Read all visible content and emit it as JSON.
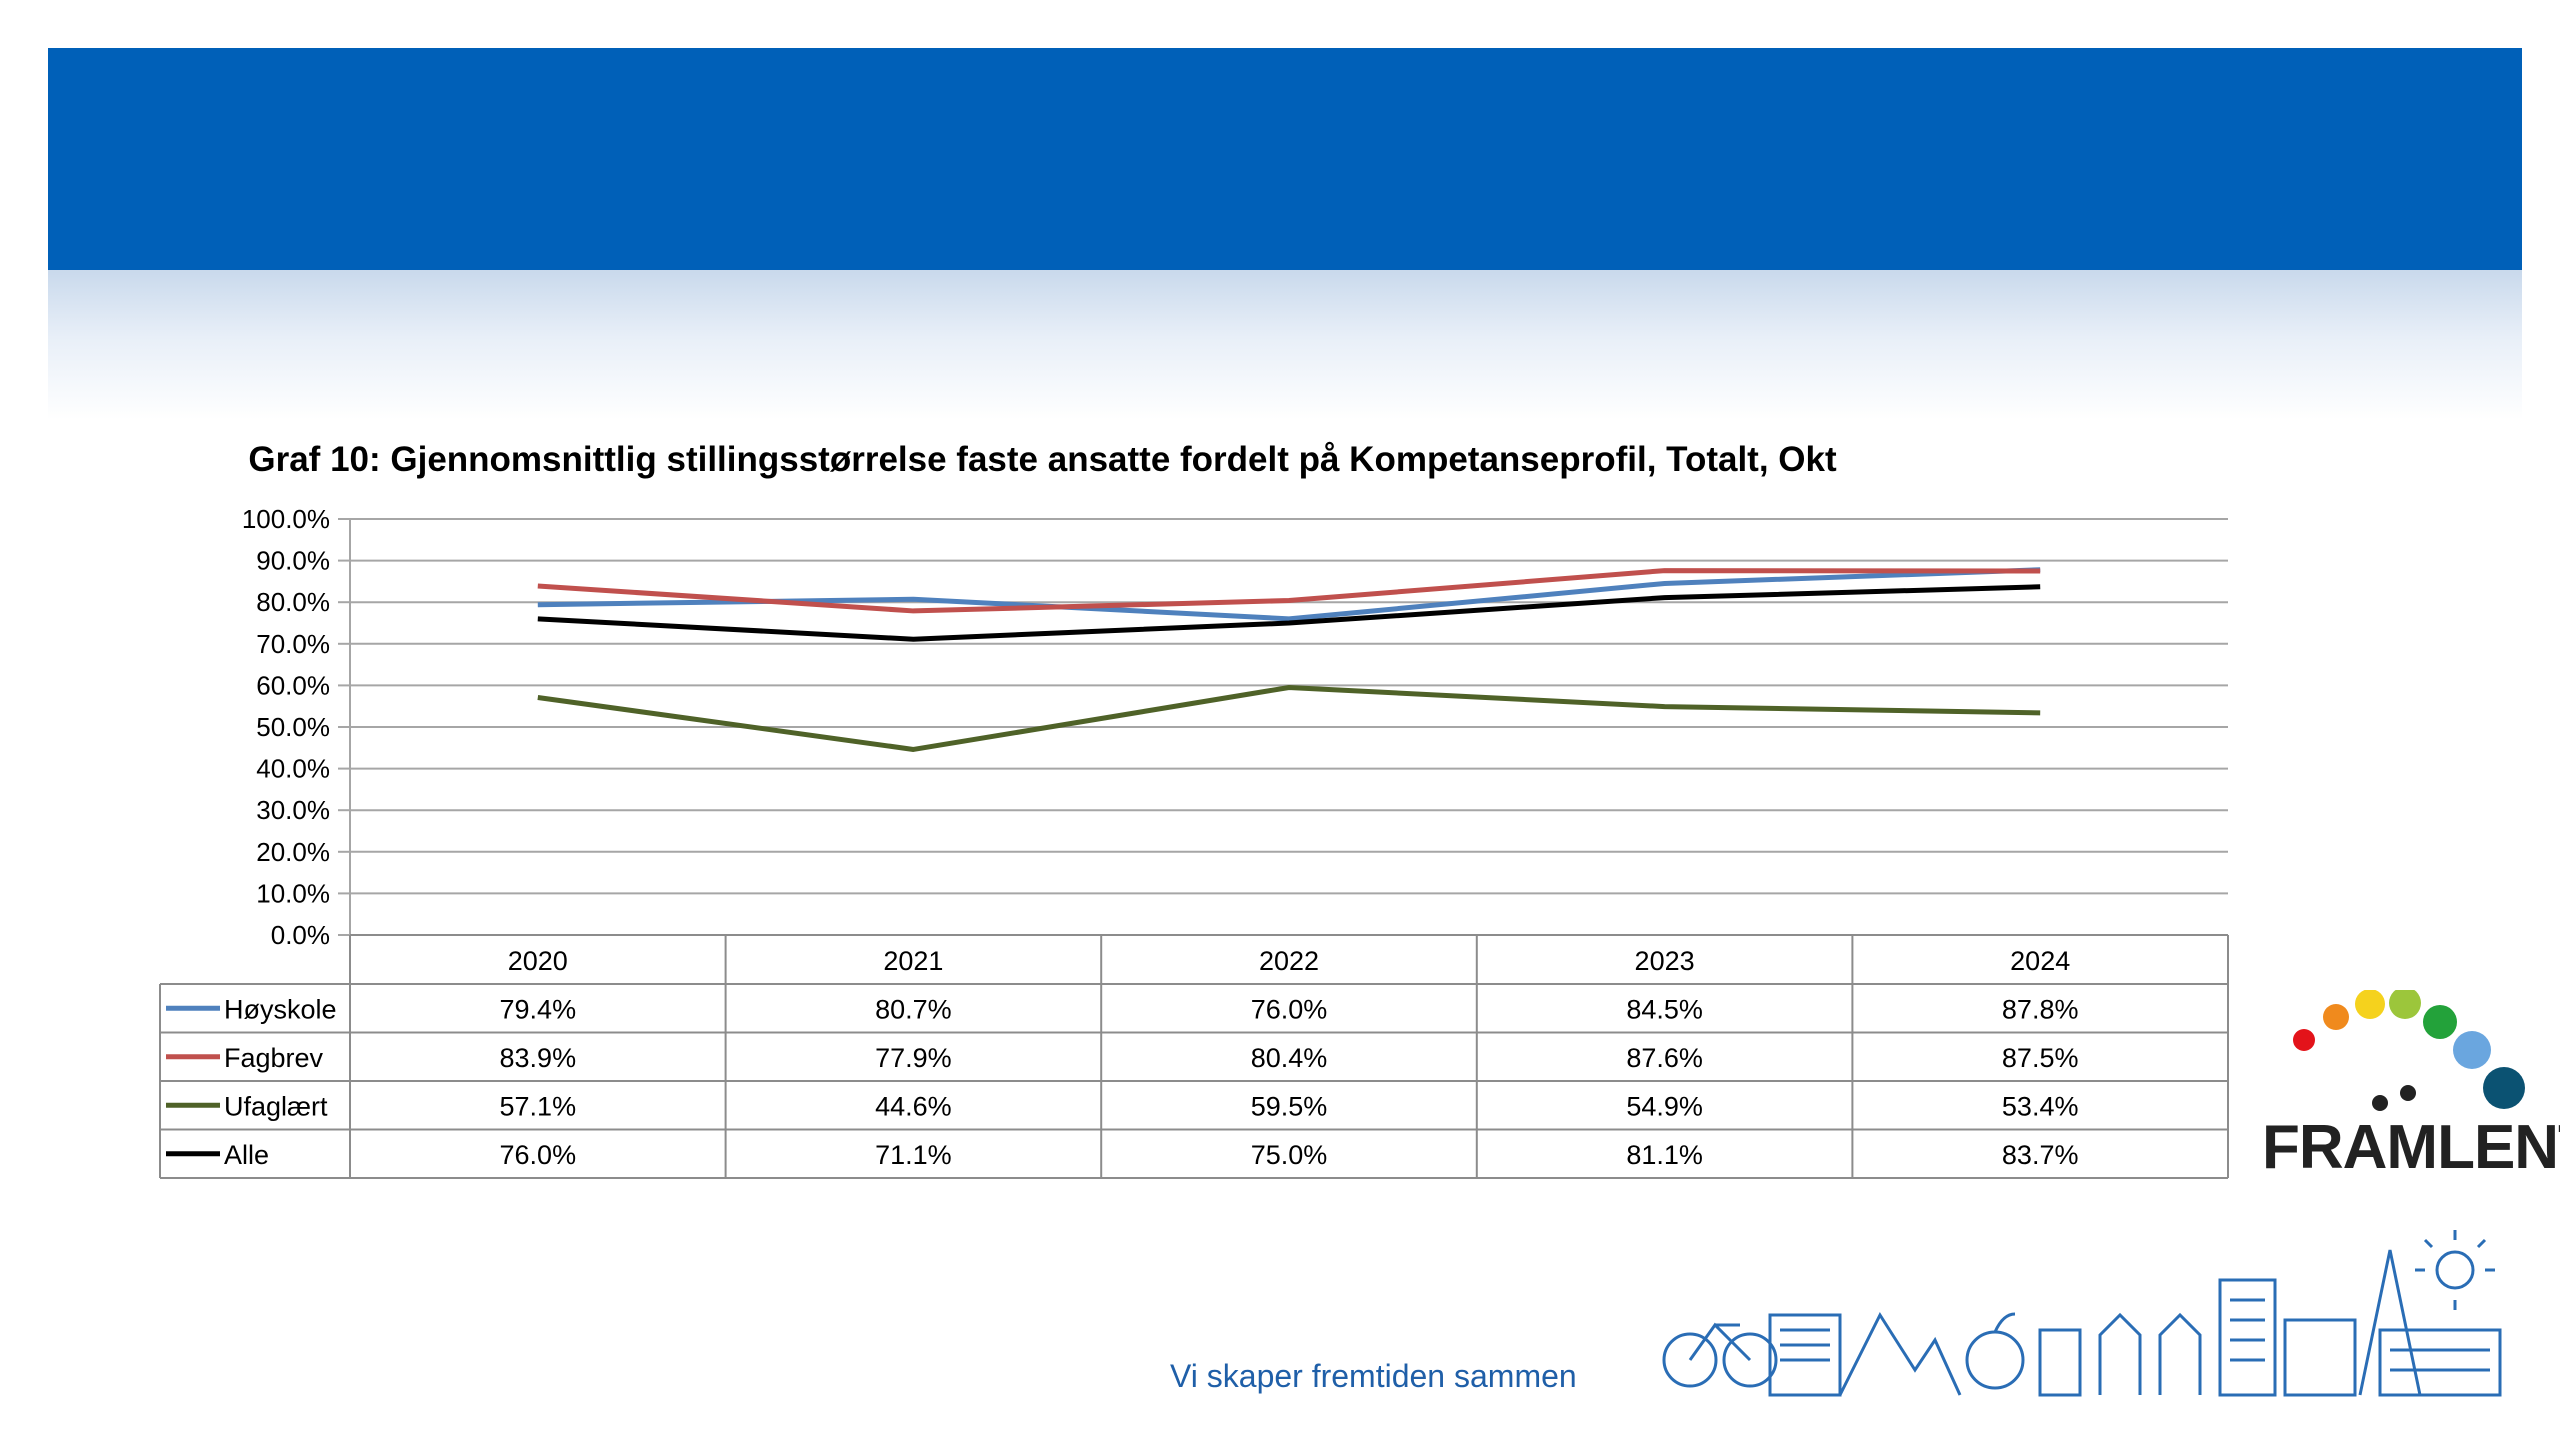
{
  "slide": {
    "slogan": "Vi skaper fremtiden sammen",
    "logo_text": "FRAMLENT",
    "banner_color": "#0060b8",
    "logo_dot_colors": [
      "#e3131a",
      "#f08a1d",
      "#f5d21d",
      "#9cc63b",
      "#23a23a",
      "#6aa6df",
      "#0b5272"
    ]
  },
  "chart_data": {
    "type": "line",
    "title": "Graf 10: Gjennomsnittlig stillingsstørrelse faste ansatte fordelt på Kompetanseprofil, Totalt, Okt",
    "categories": [
      "2020",
      "2021",
      "2022",
      "2023",
      "2024"
    ],
    "ylim": [
      0,
      100
    ],
    "yticks": [
      "100.0%",
      "90.0%",
      "80.0%",
      "70.0%",
      "60.0%",
      "50.0%",
      "40.0%",
      "30.0%",
      "20.0%",
      "10.0%",
      "0.0%"
    ],
    "grid": true,
    "legend": "data-table",
    "series": [
      {
        "name": "Høyskole",
        "color": "#4f81bd",
        "values": [
          79.4,
          80.7,
          76.0,
          84.5,
          87.8
        ],
        "labels": [
          "79.4%",
          "80.7%",
          "76.0%",
          "84.5%",
          "87.8%"
        ]
      },
      {
        "name": "Fagbrev",
        "color": "#c0504d",
        "values": [
          83.9,
          77.9,
          80.4,
          87.6,
          87.5
        ],
        "labels": [
          "83.9%",
          "77.9%",
          "80.4%",
          "87.6%",
          "87.5%"
        ]
      },
      {
        "name": "Ufaglært",
        "color": "#4f6228",
        "values": [
          57.1,
          44.6,
          59.5,
          54.9,
          53.4
        ],
        "labels": [
          "57.1%",
          "44.6%",
          "59.5%",
          "54.9%",
          "53.4%"
        ]
      },
      {
        "name": "Alle",
        "color": "#000000",
        "values": [
          76.0,
          71.1,
          75.0,
          81.1,
          83.7
        ],
        "labels": [
          "76.0%",
          "71.1%",
          "75.0%",
          "81.1%",
          "83.7%"
        ]
      }
    ]
  }
}
